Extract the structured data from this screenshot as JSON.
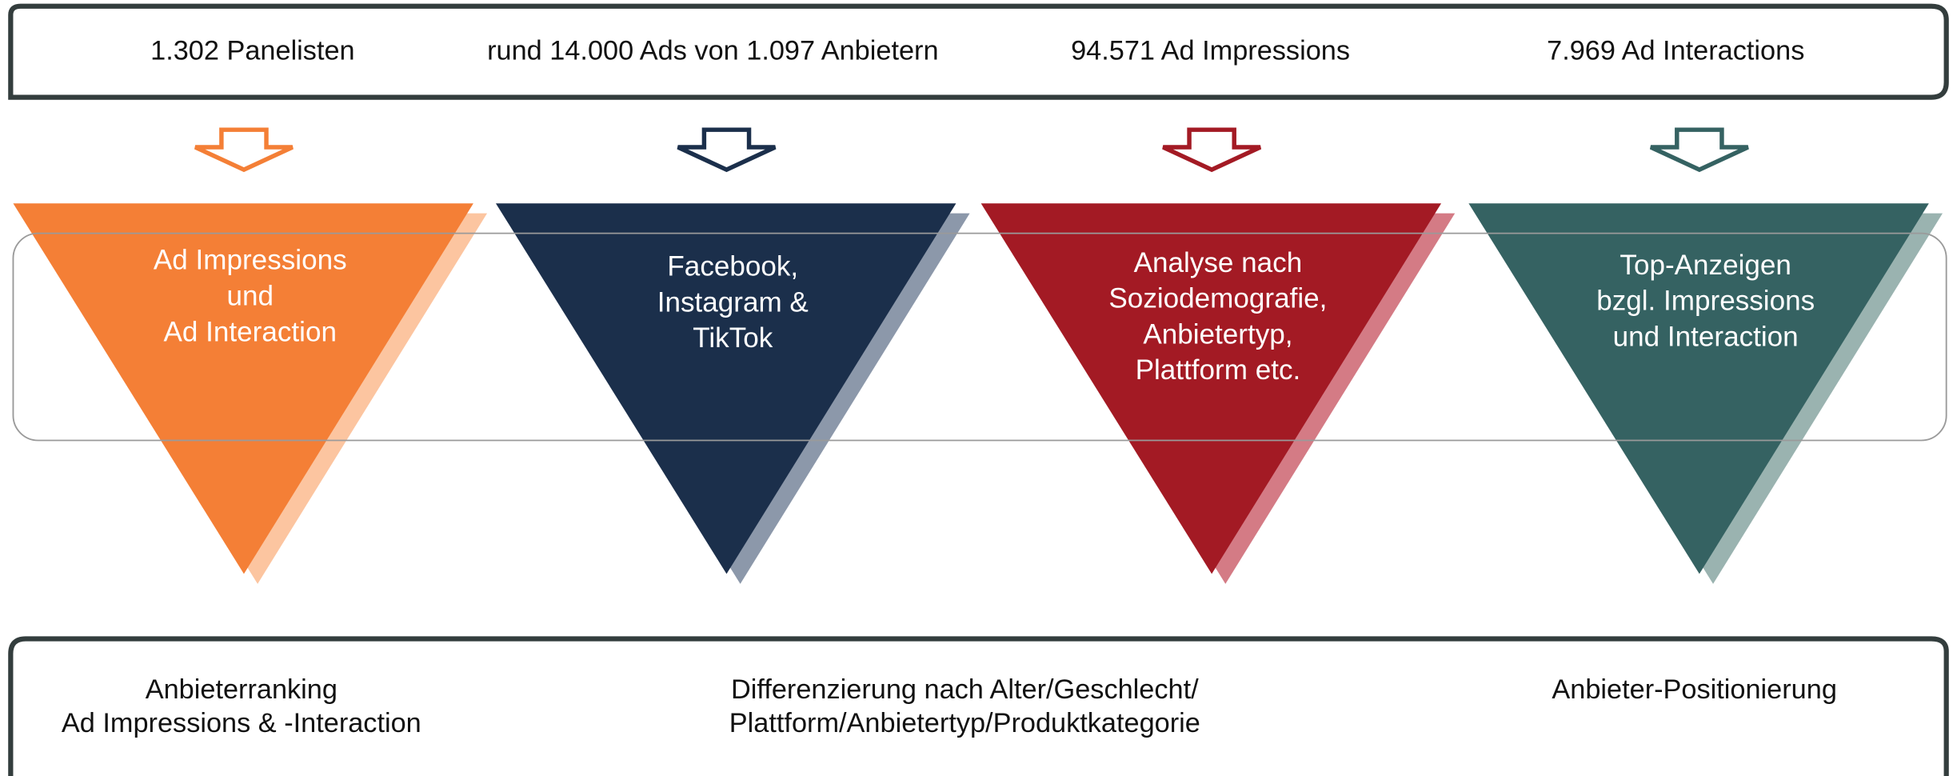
{
  "top_stats": [
    "1.302 Panelisten",
    "rund 14.000 Ads von 1.097 Anbietern",
    "94.571 Ad Impressions",
    "7.969 Ad Interactions"
  ],
  "steps": [
    {
      "lines": [
        "Ad Impressions",
        "und",
        "Ad Interaction"
      ]
    },
    {
      "lines": [
        "Facebook,",
        "Instagram &",
        "TikTok"
      ]
    },
    {
      "lines": [
        "Analyse nach",
        "Soziodemografie,",
        "Anbietertyp,",
        "Plattform etc."
      ]
    },
    {
      "lines": [
        "Top-Anzeigen",
        "bzgl. Impressions",
        "und Interaction"
      ]
    }
  ],
  "outcomes": [
    {
      "lines": [
        "Anbieterranking",
        "Ad Impressions & -Interaction"
      ]
    },
    {
      "lines": [
        "Differenzierung nach Alter/Geschlecht/",
        "Plattform/Anbietertyp/Produktkategorie"
      ]
    },
    {
      "lines": [
        "Anbieter-Positionierung"
      ]
    }
  ]
}
